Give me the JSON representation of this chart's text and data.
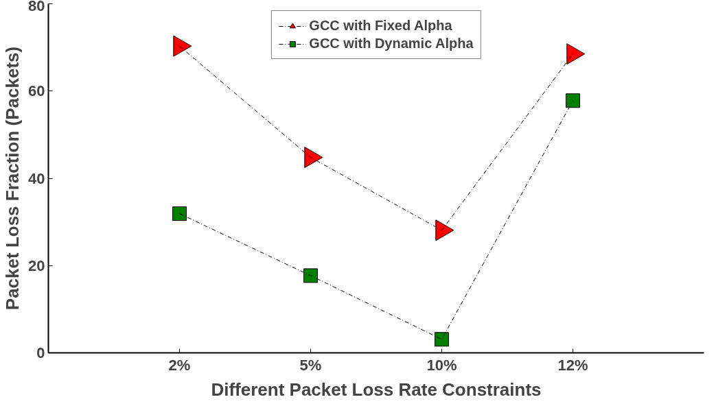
{
  "chart_data": {
    "type": "line",
    "xlabel": "Different Packet Loss Rate Constraints",
    "ylabel": "Packet Loss Fraction (Packets)",
    "categories": [
      "2%",
      "5%",
      "10%",
      "12%"
    ],
    "series": [
      {
        "name": "GCC with Fixed Alpha",
        "color": "#ff0000",
        "marker": "triangle",
        "values": [
          70.3,
          44.8,
          28.1,
          68.5
        ]
      },
      {
        "name": "GCC with Dynamic Alpha",
        "color": "#008000",
        "marker": "square",
        "values": [
          31.9,
          17.7,
          3.1,
          57.8
        ]
      }
    ],
    "ylim": [
      0,
      80
    ],
    "yticks": [
      0,
      20,
      40,
      60,
      80
    ],
    "line_style": "dashed",
    "grid": false,
    "legend": "top"
  }
}
